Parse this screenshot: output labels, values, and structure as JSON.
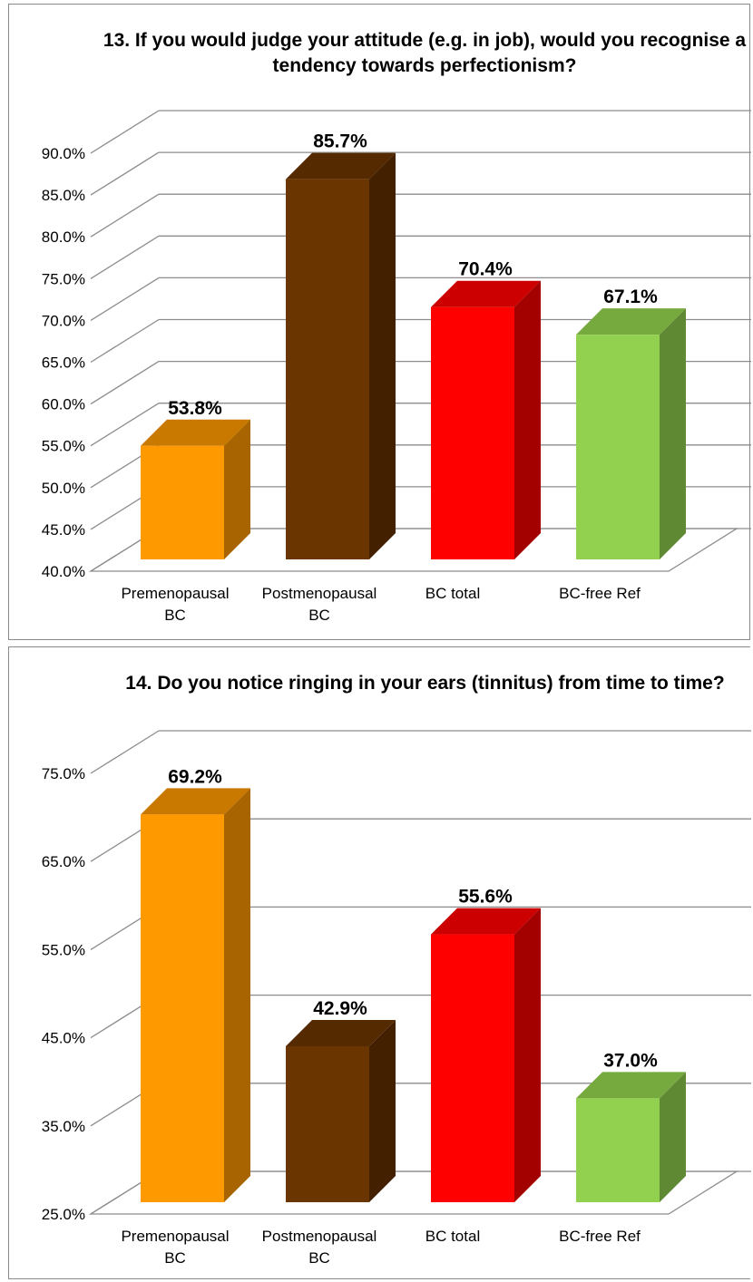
{
  "colors": {
    "premenopausal": {
      "front": "#FF9900",
      "top": "#C97800",
      "side": "#A86400"
    },
    "postmenopausal": {
      "front": "#6B3500",
      "top": "#552A00",
      "side": "#432100"
    },
    "bc_total": {
      "front": "#FF0000",
      "top": "#CC0000",
      "side": "#A30000"
    },
    "bc_free_ref": {
      "front": "#92D050",
      "top": "#76AA3F",
      "side": "#5F8A33"
    },
    "gridline": "#8c8c8c"
  },
  "chart_data": [
    {
      "type": "bar",
      "title": "13. If you would judge your attitude (e.g. in job), would you recognise a tendency towards perfectionism?",
      "categories": [
        [
          "Premenopausal",
          "BC"
        ],
        [
          "Postmenopausal",
          "BC"
        ],
        [
          "BC total"
        ],
        [
          "BC-free Ref"
        ]
      ],
      "values": [
        53.8,
        85.7,
        70.4,
        67.1
      ],
      "data_labels": [
        "53.8%",
        "85.7%",
        "70.4%",
        "67.1%"
      ],
      "ylim": [
        40,
        90
      ],
      "yticks": [
        40,
        45,
        50,
        55,
        60,
        65,
        70,
        75,
        80,
        85,
        90
      ],
      "ytick_labels": [
        "40.0%",
        "45.0%",
        "50.0%",
        "55.0%",
        "60.0%",
        "65.0%",
        "70.0%",
        "75.0%",
        "80.0%",
        "85.0%",
        "90.0%"
      ],
      "style": "3d-column",
      "grid": true
    },
    {
      "type": "bar",
      "title": "14. Do you notice ringing in your ears (tinnitus) from time to time?",
      "categories": [
        [
          "Premenopausal",
          "BC"
        ],
        [
          "Postmenopausal",
          "BC"
        ],
        [
          "BC total"
        ],
        [
          "BC-free Ref"
        ]
      ],
      "values": [
        69.2,
        42.9,
        55.6,
        37.0
      ],
      "data_labels": [
        "69.2%",
        "42.9%",
        "55.6%",
        "37.0%"
      ],
      "ylim": [
        25,
        75
      ],
      "yticks": [
        25,
        35,
        45,
        55,
        65,
        75
      ],
      "ytick_labels": [
        "25.0%",
        "35.0%",
        "45.0%",
        "55.0%",
        "65.0%",
        "75.0%"
      ],
      "style": "3d-column",
      "grid": true
    }
  ]
}
